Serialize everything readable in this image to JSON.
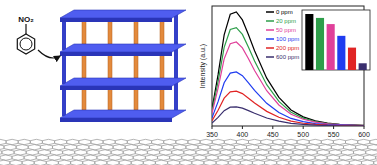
{
  "molecule": {
    "label": "NO₂"
  },
  "chart_data": [
    {
      "type": "line",
      "y_label": "Intensity (a.u.)",
      "x": [
        350,
        360,
        370,
        380,
        390,
        400,
        410,
        420,
        440,
        460,
        480,
        500,
        520,
        540,
        560,
        580,
        600
      ],
      "xlim": [
        350,
        600
      ],
      "xticks": [
        350,
        400,
        450,
        500,
        550,
        600
      ],
      "ylim": [
        0,
        1000
      ],
      "tick_labels": "x",
      "legend": "top-right",
      "series": [
        {
          "name": "0 ppm",
          "color": "#000000",
          "values": [
            143,
            428,
            760,
            931,
            950,
            884,
            760,
            627,
            399,
            238,
            133,
            76,
            43,
            24,
            14,
            10,
            5
          ]
        },
        {
          "name": "20 ppm",
          "color": "#2e9e4a",
          "values": [
            123,
            369,
            656,
            804,
            820,
            763,
            656,
            541,
            344,
            205,
            115,
            66,
            37,
            21,
            12,
            8,
            4
          ]
        },
        {
          "name": "50 ppm",
          "color": "#e0409a",
          "values": [
            105,
            315,
            560,
            686,
            700,
            651,
            560,
            462,
            294,
            175,
            98,
            56,
            32,
            18,
            11,
            7,
            4
          ]
        },
        {
          "name": "100 ppm",
          "color": "#1f3cf0",
          "values": [
            68,
            203,
            360,
            441,
            450,
            419,
            360,
            297,
            189,
            113,
            63,
            36,
            20,
            11,
            7,
            5,
            2
          ]
        },
        {
          "name": "200 ppm",
          "color": "#e02424",
          "values": [
            44,
            131,
            232,
            284,
            290,
            270,
            232,
            191,
            122,
            73,
            41,
            23,
            13,
            7,
            4,
            3,
            1
          ]
        },
        {
          "name": "600 ppm",
          "color": "#3a2f6e",
          "values": [
            24,
            72,
            128,
            157,
            160,
            149,
            128,
            106,
            67,
            40,
            22,
            13,
            7,
            4,
            2,
            2,
            1
          ]
        }
      ]
    },
    {
      "type": "bar",
      "categories": [
        null,
        null,
        null,
        null,
        null,
        null
      ],
      "values": [
        100,
        93,
        82,
        61,
        40,
        12
      ],
      "colors": [
        "#000000",
        "#2e9e4a",
        "#e0409a",
        "#1f3cf0",
        "#e02424",
        "#3a2f6e"
      ],
      "ylim": [
        0,
        100
      ],
      "tick_labels": false
    }
  ]
}
